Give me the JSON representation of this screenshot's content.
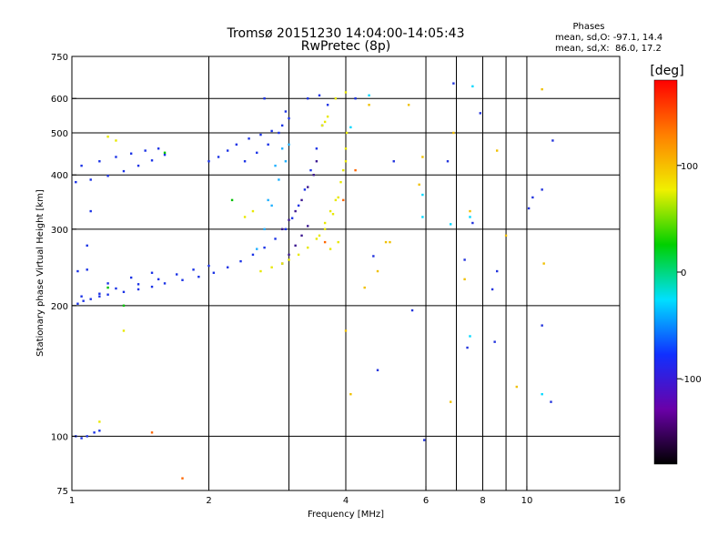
{
  "chart_data": {
    "type": "scatter",
    "title": "Tromsø 20151230 14:04:00-14:05:43",
    "subtitle": "RwPretec (8p)",
    "annotation": {
      "heading": "Phases",
      "line1": "mean, sd,O: -97.1, 14.4",
      "line2": "mean, sd,X:  86.0, 17.2"
    },
    "xlabel": "Frequency [MHz]",
    "ylabel": "Stationary phase Virtual Height [km]",
    "x_scale": "log",
    "y_scale": "log",
    "xlim": [
      1,
      16
    ],
    "ylim": [
      75,
      750
    ],
    "x_ticks": [
      1,
      2,
      4,
      6,
      8,
      10,
      16
    ],
    "x_gridlines": [
      2,
      3,
      4,
      6,
      7,
      8,
      9,
      10
    ],
    "y_ticks": [
      75,
      100,
      200,
      300,
      400,
      500,
      600,
      750
    ],
    "y_gridlines": [
      100,
      200,
      300,
      400,
      500,
      600
    ],
    "colorbar": {
      "label": "[deg]",
      "range": [
        -180,
        180
      ],
      "ticks": [
        100,
        0,
        -100
      ],
      "colors": [
        "#000000",
        "#6a00a8",
        "#1030ff",
        "#00e0ff",
        "#00d000",
        "#f0f000",
        "#ff8000",
        "#ff0000"
      ]
    },
    "series": [
      {
        "color": "#1a32e6",
        "points": [
          [
            1.03,
            202
          ],
          [
            1.06,
            205
          ],
          [
            1.1,
            207
          ],
          [
            1.15,
            210
          ],
          [
            1.2,
            212
          ],
          [
            1.3,
            215
          ],
          [
            1.4,
            218
          ],
          [
            1.5,
            221
          ],
          [
            1.6,
            225
          ],
          [
            1.75,
            229
          ],
          [
            1.9,
            233
          ],
          [
            2.05,
            238
          ],
          [
            2.2,
            245
          ],
          [
            2.35,
            253
          ],
          [
            2.5,
            262
          ],
          [
            2.65,
            272
          ],
          [
            2.8,
            285
          ],
          [
            2.95,
            300
          ],
          [
            3.05,
            318
          ],
          [
            3.15,
            340
          ],
          [
            3.25,
            370
          ],
          [
            3.35,
            410
          ],
          [
            3.45,
            460
          ],
          [
            3.55,
            520
          ],
          [
            3.65,
            580
          ],
          [
            1.05,
            210
          ],
          [
            1.15,
            213
          ],
          [
            1.25,
            219
          ],
          [
            1.4,
            224
          ],
          [
            1.55,
            230
          ],
          [
            1.7,
            236
          ],
          [
            1.85,
            242
          ],
          [
            2.0,
            247
          ],
          [
            1.03,
            240
          ],
          [
            1.08,
            242
          ],
          [
            1.2,
            225
          ],
          [
            1.35,
            232
          ],
          [
            1.5,
            238
          ],
          [
            1.02,
            385
          ],
          [
            1.1,
            390
          ],
          [
            1.2,
            398
          ],
          [
            1.3,
            408
          ],
          [
            1.4,
            420
          ],
          [
            1.5,
            432
          ],
          [
            1.6,
            445
          ],
          [
            1.05,
            420
          ],
          [
            1.15,
            430
          ],
          [
            1.25,
            440
          ],
          [
            1.35,
            448
          ],
          [
            1.45,
            455
          ],
          [
            1.55,
            460
          ],
          [
            1.1,
            330
          ],
          [
            1.08,
            275
          ],
          [
            1.02,
            100
          ],
          [
            1.05,
            99
          ],
          [
            1.08,
            100
          ],
          [
            1.12,
            102
          ],
          [
            1.15,
            103
          ],
          [
            2.0,
            430
          ],
          [
            2.1,
            440
          ],
          [
            2.2,
            455
          ],
          [
            2.3,
            470
          ],
          [
            2.45,
            485
          ],
          [
            2.6,
            495
          ],
          [
            2.75,
            505
          ],
          [
            2.9,
            520
          ],
          [
            3.0,
            540
          ],
          [
            2.4,
            430
          ],
          [
            2.55,
            450
          ],
          [
            2.7,
            470
          ],
          [
            2.85,
            500
          ],
          [
            2.95,
            560
          ],
          [
            2.65,
            600
          ],
          [
            3.3,
            600
          ],
          [
            3.5,
            610
          ],
          [
            4.2,
            600
          ]
        ]
      },
      {
        "color": "#3c1890",
        "points": [
          [
            2.9,
            300
          ],
          [
            3.0,
            315
          ],
          [
            3.1,
            330
          ],
          [
            3.2,
            350
          ],
          [
            3.3,
            375
          ],
          [
            3.4,
            400
          ],
          [
            3.45,
            430
          ],
          [
            2.9,
            250
          ],
          [
            3.0,
            262
          ],
          [
            3.1,
            275
          ],
          [
            3.2,
            290
          ],
          [
            3.3,
            305
          ]
        ]
      },
      {
        "color": "#1fb0ff",
        "points": [
          [
            2.55,
            270
          ],
          [
            2.65,
            300
          ],
          [
            2.75,
            340
          ],
          [
            2.85,
            390
          ],
          [
            2.95,
            430
          ],
          [
            3.0,
            470
          ],
          [
            2.7,
            350
          ],
          [
            2.8,
            420
          ],
          [
            2.9,
            460
          ]
        ]
      },
      {
        "color": "#e8e800",
        "points": [
          [
            3.0,
            255
          ],
          [
            3.15,
            262
          ],
          [
            3.3,
            272
          ],
          [
            3.45,
            285
          ],
          [
            3.6,
            300
          ],
          [
            3.75,
            325
          ],
          [
            3.85,
            355
          ],
          [
            3.9,
            385
          ],
          [
            3.95,
            410
          ],
          [
            4.0,
            430
          ],
          [
            4.0,
            460
          ],
          [
            4.02,
            500
          ],
          [
            3.5,
            290
          ],
          [
            3.6,
            310
          ],
          [
            3.7,
            330
          ],
          [
            3.8,
            350
          ],
          [
            3.85,
            280
          ],
          [
            3.7,
            270
          ],
          [
            3.55,
            520
          ],
          [
            3.6,
            530
          ],
          [
            3.65,
            545
          ],
          [
            2.6,
            240
          ],
          [
            2.75,
            245
          ],
          [
            2.9,
            250
          ],
          [
            3.8,
            600
          ],
          [
            4.0,
            620
          ],
          [
            1.2,
            490
          ],
          [
            1.25,
            480
          ],
          [
            1.15,
            108
          ],
          [
            1.3,
            175
          ],
          [
            2.4,
            320
          ],
          [
            2.5,
            330
          ]
        ]
      },
      {
        "color": "#00c000",
        "points": [
          [
            1.6,
            450
          ],
          [
            2.25,
            350
          ],
          [
            1.3,
            200
          ],
          [
            1.2,
            220
          ]
        ]
      },
      {
        "color": "#ff6600",
        "points": [
          [
            3.95,
            350
          ],
          [
            3.6,
            280
          ],
          [
            1.75,
            80
          ],
          [
            4.2,
            410
          ],
          [
            1.5,
            102
          ]
        ]
      },
      {
        "color": "#2233dd",
        "points": [
          [
            4.6,
            260
          ],
          [
            4.7,
            142
          ],
          [
            5.1,
            430
          ],
          [
            5.6,
            195
          ],
          [
            5.95,
            98
          ],
          [
            6.7,
            430
          ],
          [
            6.9,
            650
          ],
          [
            7.3,
            255
          ],
          [
            7.4,
            160
          ],
          [
            7.6,
            310
          ],
          [
            7.9,
            555
          ],
          [
            8.4,
            218
          ],
          [
            8.5,
            165
          ],
          [
            8.6,
            240
          ],
          [
            10.3,
            355
          ],
          [
            10.8,
            180
          ],
          [
            10.8,
            370
          ],
          [
            11.3,
            120
          ],
          [
            11.4,
            480
          ],
          [
            10.1,
            335
          ]
        ]
      },
      {
        "color": "#f0c000",
        "points": [
          [
            4.5,
            580
          ],
          [
            4.7,
            240
          ],
          [
            4.9,
            280
          ],
          [
            5.5,
            580
          ],
          [
            5.8,
            380
          ],
          [
            6.9,
            500
          ],
          [
            7.3,
            230
          ],
          [
            7.5,
            330
          ],
          [
            9.0,
            290
          ],
          [
            9.5,
            130
          ],
          [
            10.8,
            630
          ],
          [
            10.9,
            250
          ],
          [
            5.9,
            440
          ],
          [
            4.0,
            175
          ],
          [
            4.1,
            125
          ],
          [
            4.4,
            220
          ],
          [
            5.0,
            280
          ],
          [
            6.8,
            120
          ],
          [
            8.6,
            455
          ]
        ]
      },
      {
        "color": "#00d8ff",
        "points": [
          [
            5.9,
            360
          ],
          [
            5.9,
            320
          ],
          [
            6.8,
            308
          ],
          [
            7.5,
            320
          ],
          [
            7.5,
            170
          ],
          [
            7.6,
            640
          ],
          [
            4.1,
            515
          ],
          [
            10.8,
            125
          ],
          [
            4.5,
            610
          ]
        ]
      }
    ]
  }
}
